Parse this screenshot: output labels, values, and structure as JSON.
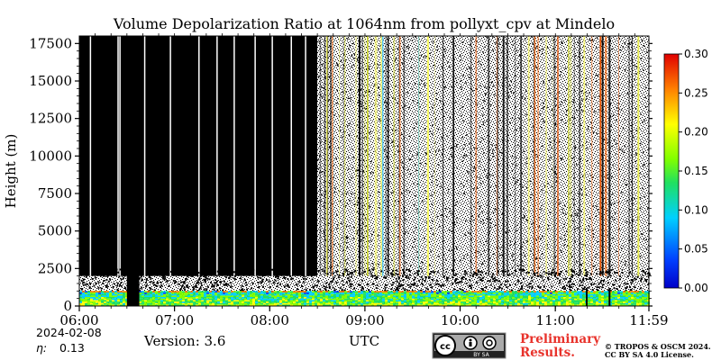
{
  "chart_data": {
    "type": "heatmap",
    "title": "Volume Depolarization Ratio at 1064nm from pollyxt_cpv at Mindelo",
    "xlabel": "UTC",
    "ylabel": "Height (m)",
    "x_ticks": [
      "06:00",
      "07:00",
      "08:00",
      "09:00",
      "10:00",
      "11:00",
      "11:59"
    ],
    "x_tick_values_hours": [
      6.0,
      7.0,
      8.0,
      9.0,
      10.0,
      11.0,
      11.983
    ],
    "xlim_hours": [
      6.0,
      11.983
    ],
    "y_ticks": [
      0,
      2500,
      5000,
      7500,
      10000,
      12500,
      15000,
      17500
    ],
    "ylim": [
      0,
      18000
    ],
    "colorbar": {
      "min": 0.0,
      "max": 0.3,
      "ticks": [
        "0.00",
        "0.05",
        "0.10",
        "0.15",
        "0.20",
        "0.25",
        "0.30"
      ],
      "colormap": "jet"
    },
    "regions": [
      {
        "name": "no-signal-black",
        "x_start": 6.0,
        "x_end": 8.5,
        "y_start": 2000,
        "y_end": 18000,
        "value": "black"
      },
      {
        "name": "gap",
        "x_start": 6.5,
        "x_end": 6.63,
        "y_start": 0,
        "y_end": 18000,
        "value": "black"
      },
      {
        "name": "aerosol-layer",
        "x_start": 6.0,
        "x_end": 11.983,
        "y_start": 0,
        "y_end": 1000,
        "value_range": [
          0.05,
          0.15
        ]
      },
      {
        "name": "noisy-upper",
        "x_start": 8.5,
        "x_end": 11.983,
        "y_start": 2000,
        "y_end": 18000,
        "value": "noise"
      }
    ]
  },
  "footer": {
    "date": "2024-02-08",
    "eta_label": "η:",
    "eta_value": "0.13",
    "version": "Version: 3.6",
    "license_badge_text": "BY    SA",
    "preliminary_line1": "Preliminary",
    "preliminary_line2": "Results.",
    "copyright_line1": "© TROPOS & OSCM 2024.",
    "copyright_line2": "CC BY SA 4.0 License."
  },
  "colors": {
    "background": "#ffffff",
    "preliminary_text": "#e8322b"
  }
}
